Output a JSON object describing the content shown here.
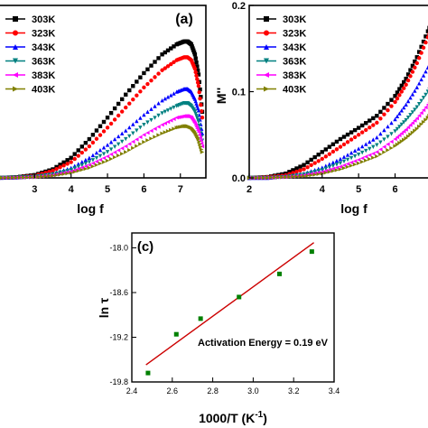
{
  "figure": {
    "background": "#ffffff"
  },
  "chart_data": [
    {
      "panel": "a",
      "panel_label": "(a)",
      "type": "scatter",
      "xlabel": "log f",
      "ylabel": "",
      "xlim": [
        2.0,
        7.7
      ],
      "ylim": [
        0.0,
        1.0
      ],
      "xticks": [
        "3",
        "4",
        "5",
        "6",
        "7"
      ],
      "yticks": [],
      "legend_position": "top-left",
      "series": [
        {
          "name": "303K",
          "color": "#000000",
          "marker": "square",
          "x": [
            2.0,
            2.5,
            3.0,
            3.5,
            4.0,
            4.5,
            5.0,
            5.5,
            6.0,
            6.5,
            6.9,
            7.1,
            7.2,
            7.3,
            7.4,
            7.5,
            7.6
          ],
          "y": [
            0.0,
            0.005,
            0.02,
            0.06,
            0.14,
            0.27,
            0.42,
            0.58,
            0.73,
            0.86,
            0.93,
            0.95,
            0.95,
            0.93,
            0.86,
            0.72,
            0.46
          ]
        },
        {
          "name": "323K",
          "color": "#ff0000",
          "marker": "circle",
          "x": [
            2.0,
            2.5,
            3.0,
            3.5,
            4.0,
            4.5,
            5.0,
            5.5,
            6.0,
            6.5,
            6.9,
            7.1,
            7.2,
            7.3,
            7.4,
            7.5,
            7.6
          ],
          "y": [
            0.0,
            0.004,
            0.015,
            0.05,
            0.11,
            0.22,
            0.35,
            0.49,
            0.63,
            0.75,
            0.82,
            0.84,
            0.84,
            0.82,
            0.76,
            0.64,
            0.42
          ]
        },
        {
          "name": "343K",
          "color": "#0000ff",
          "marker": "triangle-up",
          "x": [
            2.0,
            2.5,
            3.0,
            3.5,
            4.0,
            4.5,
            5.0,
            5.5,
            6.0,
            6.5,
            6.9,
            7.1,
            7.2,
            7.3,
            7.4,
            7.5,
            7.6
          ],
          "y": [
            0.0,
            0.003,
            0.01,
            0.03,
            0.07,
            0.14,
            0.23,
            0.33,
            0.44,
            0.54,
            0.6,
            0.62,
            0.62,
            0.6,
            0.55,
            0.47,
            0.31
          ]
        },
        {
          "name": "363K",
          "color": "#008080",
          "marker": "triangle-down",
          "x": [
            2.0,
            2.5,
            3.0,
            3.5,
            4.0,
            4.5,
            5.0,
            5.5,
            6.0,
            6.5,
            6.9,
            7.1,
            7.2,
            7.3,
            7.4,
            7.5,
            7.6
          ],
          "y": [
            0.0,
            0.002,
            0.008,
            0.025,
            0.055,
            0.11,
            0.18,
            0.27,
            0.37,
            0.45,
            0.5,
            0.52,
            0.52,
            0.5,
            0.46,
            0.39,
            0.26
          ]
        },
        {
          "name": "383K",
          "color": "#ff00ff",
          "marker": "triangle-left",
          "x": [
            2.0,
            2.5,
            3.0,
            3.5,
            4.0,
            4.5,
            5.0,
            5.5,
            6.0,
            6.5,
            6.9,
            7.1,
            7.2,
            7.3,
            7.4,
            7.5,
            7.6
          ],
          "y": [
            0.0,
            0.002,
            0.006,
            0.02,
            0.045,
            0.09,
            0.15,
            0.22,
            0.3,
            0.37,
            0.42,
            0.43,
            0.43,
            0.42,
            0.38,
            0.32,
            0.22
          ]
        },
        {
          "name": "403K",
          "color": "#808000",
          "marker": "triangle-right",
          "x": [
            2.0,
            2.5,
            3.0,
            3.5,
            4.0,
            4.5,
            5.0,
            5.5,
            6.0,
            6.5,
            6.9,
            7.1,
            7.2,
            7.3,
            7.4,
            7.5,
            7.6
          ],
          "y": [
            0.0,
            0.001,
            0.005,
            0.015,
            0.035,
            0.07,
            0.12,
            0.18,
            0.25,
            0.31,
            0.35,
            0.36,
            0.36,
            0.35,
            0.32,
            0.27,
            0.18
          ]
        }
      ]
    },
    {
      "panel": "b",
      "panel_label": "",
      "type": "scatter",
      "xlabel": "log f",
      "ylabel": "M''",
      "xlim": [
        2.0,
        7.2
      ],
      "ylim": [
        0.0,
        0.2
      ],
      "xticks": [
        "2",
        "4",
        "5",
        "6"
      ],
      "yticks": [
        "0.0",
        "0.1",
        "0.2"
      ],
      "legend_position": "top-left",
      "series": [
        {
          "name": "303K",
          "color": "#000000",
          "marker": "square",
          "x": [
            2.0,
            2.5,
            3.0,
            3.5,
            4.0,
            4.5,
            5.0,
            5.5,
            6.0,
            6.3,
            6.6,
            6.9,
            7.1
          ],
          "y": [
            0.0,
            0.001,
            0.005,
            0.015,
            0.03,
            0.045,
            0.058,
            0.072,
            0.095,
            0.115,
            0.14,
            0.17,
            0.19
          ]
        },
        {
          "name": "323K",
          "color": "#ff0000",
          "marker": "circle",
          "x": [
            2.0,
            2.5,
            3.0,
            3.5,
            4.0,
            4.5,
            5.0,
            5.5,
            6.0,
            6.3,
            6.6,
            6.9,
            7.1
          ],
          "y": [
            0.0,
            0.001,
            0.003,
            0.01,
            0.022,
            0.036,
            0.05,
            0.064,
            0.088,
            0.108,
            0.133,
            0.163,
            0.183
          ]
        },
        {
          "name": "343K",
          "color": "#0000ff",
          "marker": "triangle-up",
          "x": [
            2.0,
            2.5,
            3.0,
            3.5,
            4.0,
            4.5,
            5.0,
            5.5,
            6.0,
            6.3,
            6.6,
            6.9,
            7.1
          ],
          "y": [
            0.0,
            0.0,
            0.002,
            0.005,
            0.012,
            0.022,
            0.034,
            0.047,
            0.068,
            0.085,
            0.105,
            0.128,
            0.145
          ]
        },
        {
          "name": "363K",
          "color": "#008080",
          "marker": "triangle-down",
          "x": [
            2.0,
            2.5,
            3.0,
            3.5,
            4.0,
            4.5,
            5.0,
            5.5,
            6.0,
            6.3,
            6.6,
            6.9,
            7.1
          ],
          "y": [
            0.0,
            0.0,
            0.001,
            0.004,
            0.009,
            0.017,
            0.027,
            0.038,
            0.054,
            0.067,
            0.082,
            0.1,
            0.113
          ]
        },
        {
          "name": "383K",
          "color": "#ff00ff",
          "marker": "triangle-left",
          "x": [
            2.0,
            2.5,
            3.0,
            3.5,
            4.0,
            4.5,
            5.0,
            5.5,
            6.0,
            6.3,
            6.6,
            6.9,
            7.1
          ],
          "y": [
            0.0,
            0.0,
            0.001,
            0.003,
            0.007,
            0.013,
            0.021,
            0.03,
            0.045,
            0.056,
            0.069,
            0.085,
            0.097
          ]
        },
        {
          "name": "403K",
          "color": "#808000",
          "marker": "triangle-right",
          "x": [
            2.0,
            2.5,
            3.0,
            3.5,
            4.0,
            4.5,
            5.0,
            5.5,
            6.0,
            6.3,
            6.6,
            6.9,
            7.1
          ],
          "y": [
            0.0,
            0.0,
            0.001,
            0.002,
            0.005,
            0.01,
            0.017,
            0.025,
            0.037,
            0.046,
            0.057,
            0.07,
            0.08
          ]
        }
      ]
    },
    {
      "panel": "c",
      "panel_label": "(c)",
      "type": "scatter",
      "xlabel": "1000/T (K",
      "xlabel_sup": "-1",
      "xlabel_end": ")",
      "ylabel": "ln τ",
      "xlim": [
        2.4,
        3.4
      ],
      "ylim": [
        -19.8,
        -17.8
      ],
      "xticks": [
        "2.4",
        "2.6",
        "2.8",
        "3.0",
        "3.2",
        "3.4"
      ],
      "yticks": [
        "-18.0",
        "-18.6",
        "-19.2",
        "-19.8"
      ],
      "annotation": "Activation Energy = 0.19 eV",
      "points": {
        "color": "#008000",
        "x": [
          2.48,
          2.62,
          2.74,
          2.93,
          3.13,
          3.29
        ],
        "y": [
          -19.68,
          -19.16,
          -18.95,
          -18.66,
          -18.35,
          -18.05
        ]
      },
      "fit_line": {
        "color": "#cc0000",
        "x": [
          2.47,
          3.3
        ],
        "y": [
          -19.57,
          -17.93
        ]
      }
    }
  ]
}
